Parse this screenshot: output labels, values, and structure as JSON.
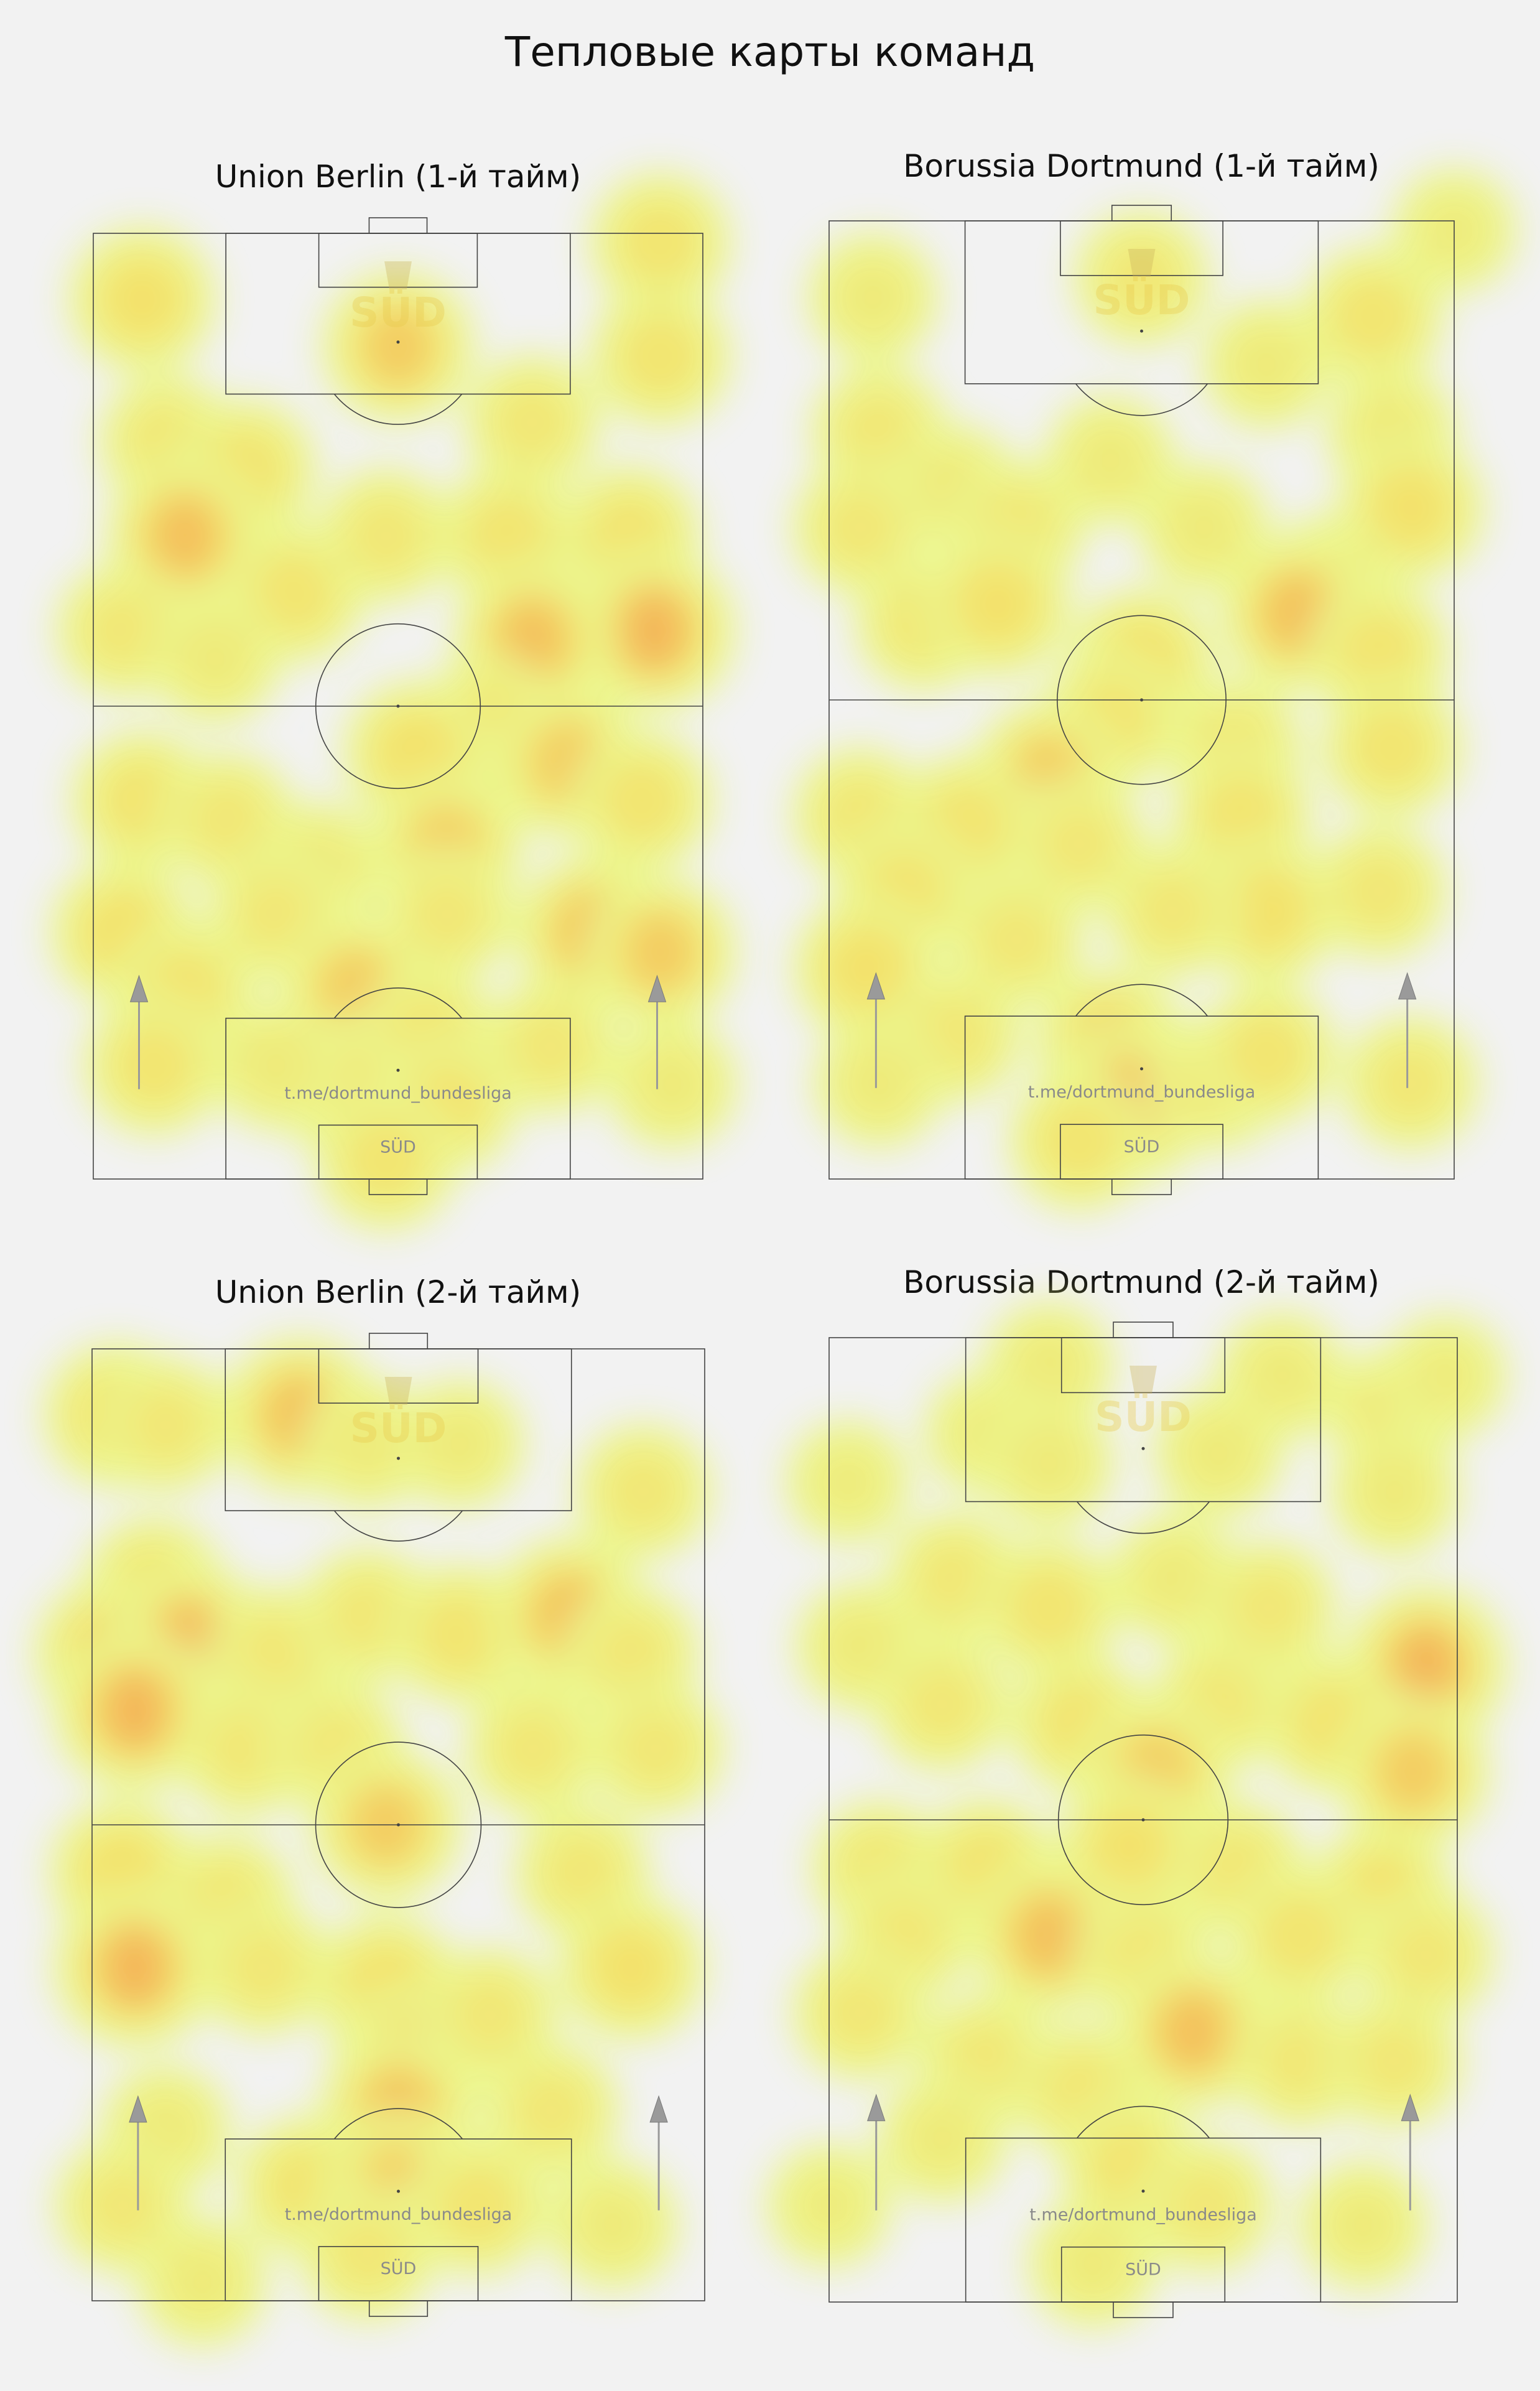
{
  "title": "Тепловые карты команд",
  "watermark": {
    "channel": "t.me/dortmund_bundesliga",
    "brand": "SÜD"
  },
  "colors": {
    "background": "#f2f2f2",
    "pitch_lines": "#444444",
    "heat_low": "#eaf77a",
    "heat_mid": "#f7d94a",
    "heat_high": "#f29a3c",
    "arrow": "#9a9a9a"
  },
  "chart_data": [
    {
      "type": "heatmap",
      "title": "Union Berlin (1-й тайм)",
      "x_range": [
        0,
        100
      ],
      "y_range": [
        0,
        100
      ],
      "attack_direction": "up",
      "hotspots": [
        {
          "x": 8,
          "y": 93,
          "w": 0.7
        },
        {
          "x": 50,
          "y": 88,
          "w": 0.8
        },
        {
          "x": 93,
          "y": 99,
          "w": 0.6
        },
        {
          "x": 93,
          "y": 87,
          "w": 0.6
        },
        {
          "x": 72,
          "y": 80,
          "w": 0.5
        },
        {
          "x": 12,
          "y": 78,
          "w": 0.5
        },
        {
          "x": 25,
          "y": 75,
          "w": 0.6
        },
        {
          "x": 15,
          "y": 68,
          "w": 0.9
        },
        {
          "x": 33,
          "y": 62,
          "w": 0.6
        },
        {
          "x": 48,
          "y": 68,
          "w": 0.5
        },
        {
          "x": 68,
          "y": 68,
          "w": 0.6
        },
        {
          "x": 88,
          "y": 68,
          "w": 0.6
        },
        {
          "x": 92,
          "y": 58,
          "w": 1.0
        },
        {
          "x": 72,
          "y": 57,
          "w": 0.9
        },
        {
          "x": 65,
          "y": 48,
          "w": 0.6
        },
        {
          "x": 5,
          "y": 58,
          "w": 0.5
        },
        {
          "x": 20,
          "y": 55,
          "w": 0.4
        },
        {
          "x": 53,
          "y": 45,
          "w": 0.7
        },
        {
          "x": 78,
          "y": 44,
          "w": 0.8
        },
        {
          "x": 90,
          "y": 40,
          "w": 0.6
        },
        {
          "x": 8,
          "y": 40,
          "w": 0.6
        },
        {
          "x": 22,
          "y": 38,
          "w": 0.5
        },
        {
          "x": 37,
          "y": 33,
          "w": 0.4
        },
        {
          "x": 58,
          "y": 35,
          "w": 0.8
        },
        {
          "x": 58,
          "y": 28,
          "w": 0.5
        },
        {
          "x": 82,
          "y": 26,
          "w": 0.9
        },
        {
          "x": 93,
          "y": 24,
          "w": 0.8
        },
        {
          "x": 5,
          "y": 26,
          "w": 0.7
        },
        {
          "x": 30,
          "y": 28,
          "w": 0.5
        },
        {
          "x": 15,
          "y": 20,
          "w": 0.6
        },
        {
          "x": 10,
          "y": 12,
          "w": 0.6
        },
        {
          "x": 43,
          "y": 20,
          "w": 0.8
        },
        {
          "x": 55,
          "y": 15,
          "w": 0.6
        },
        {
          "x": 40,
          "y": 10,
          "w": 0.5
        },
        {
          "x": 58,
          "y": 8,
          "w": 0.6
        },
        {
          "x": 48,
          "y": 2,
          "w": 0.6
        },
        {
          "x": 30,
          "y": 12,
          "w": 0.4
        },
        {
          "x": 75,
          "y": 14,
          "w": 0.5
        },
        {
          "x": 95,
          "y": 10,
          "w": 0.4
        }
      ]
    },
    {
      "type": "heatmap",
      "title": "Borussia Dortmund (1-й тайм)",
      "x_range": [
        0,
        100
      ],
      "y_range": [
        0,
        100
      ],
      "attack_direction": "up",
      "hotspots": [
        {
          "x": 7,
          "y": 92,
          "w": 0.4
        },
        {
          "x": 50,
          "y": 94,
          "w": 0.5
        },
        {
          "x": 100,
          "y": 99,
          "w": 0.3
        },
        {
          "x": 87,
          "y": 90,
          "w": 0.6
        },
        {
          "x": 70,
          "y": 85,
          "w": 0.4
        },
        {
          "x": 90,
          "y": 78,
          "w": 0.4
        },
        {
          "x": 8,
          "y": 78,
          "w": 0.5
        },
        {
          "x": 20,
          "y": 72,
          "w": 0.4
        },
        {
          "x": 45,
          "y": 75,
          "w": 0.4
        },
        {
          "x": 93,
          "y": 70,
          "w": 0.7
        },
        {
          "x": 5,
          "y": 68,
          "w": 0.5
        },
        {
          "x": 30,
          "y": 68,
          "w": 0.5
        },
        {
          "x": 60,
          "y": 68,
          "w": 0.4
        },
        {
          "x": 80,
          "y": 62,
          "w": 0.6
        },
        {
          "x": 15,
          "y": 58,
          "w": 0.5
        },
        {
          "x": 27,
          "y": 60,
          "w": 0.7
        },
        {
          "x": 75,
          "y": 59,
          "w": 0.9
        },
        {
          "x": 88,
          "y": 55,
          "w": 0.6
        },
        {
          "x": 50,
          "y": 54,
          "w": 0.7
        },
        {
          "x": 45,
          "y": 48,
          "w": 0.6
        },
        {
          "x": 35,
          "y": 42,
          "w": 0.8
        },
        {
          "x": 65,
          "y": 45,
          "w": 0.5
        },
        {
          "x": 90,
          "y": 45,
          "w": 0.6
        },
        {
          "x": 5,
          "y": 38,
          "w": 0.5
        },
        {
          "x": 22,
          "y": 37,
          "w": 0.6
        },
        {
          "x": 66,
          "y": 38,
          "w": 0.6
        },
        {
          "x": 40,
          "y": 35,
          "w": 0.5
        },
        {
          "x": 12,
          "y": 30,
          "w": 0.6
        },
        {
          "x": 70,
          "y": 28,
          "w": 0.7
        },
        {
          "x": 88,
          "y": 30,
          "w": 0.5
        },
        {
          "x": 30,
          "y": 25,
          "w": 0.5
        },
        {
          "x": 55,
          "y": 28,
          "w": 0.5
        },
        {
          "x": 6,
          "y": 22,
          "w": 0.7
        },
        {
          "x": 20,
          "y": 15,
          "w": 0.5
        },
        {
          "x": 45,
          "y": 14,
          "w": 0.8
        },
        {
          "x": 48,
          "y": 8,
          "w": 1.0
        },
        {
          "x": 40,
          "y": 4,
          "w": 0.6
        },
        {
          "x": 62,
          "y": 10,
          "w": 0.5
        },
        {
          "x": 70,
          "y": 13,
          "w": 0.6
        },
        {
          "x": 93,
          "y": 10,
          "w": 0.5
        },
        {
          "x": 8,
          "y": 10,
          "w": 0.4
        }
      ]
    },
    {
      "type": "heatmap",
      "title": "Union Berlin (2-й тайм)",
      "x_range": [
        0,
        100
      ],
      "y_range": [
        0,
        100
      ],
      "attack_direction": "up",
      "hotspots": [
        {
          "x": 4,
          "y": 93,
          "w": 0.7
        },
        {
          "x": 12,
          "y": 92,
          "w": 0.5
        },
        {
          "x": 34,
          "y": 93,
          "w": 0.9
        },
        {
          "x": 45,
          "y": 90,
          "w": 0.4
        },
        {
          "x": 60,
          "y": 90,
          "w": 0.4
        },
        {
          "x": 90,
          "y": 85,
          "w": 0.5
        },
        {
          "x": 10,
          "y": 75,
          "w": 0.6
        },
        {
          "x": 3,
          "y": 68,
          "w": 0.8
        },
        {
          "x": 16,
          "y": 69,
          "w": 1.0
        },
        {
          "x": 30,
          "y": 68,
          "w": 0.5
        },
        {
          "x": 45,
          "y": 72,
          "w": 0.5
        },
        {
          "x": 60,
          "y": 70,
          "w": 0.6
        },
        {
          "x": 78,
          "y": 72,
          "w": 0.9
        },
        {
          "x": 88,
          "y": 68,
          "w": 0.5
        },
        {
          "x": 7,
          "y": 62,
          "w": 1.0
        },
        {
          "x": 25,
          "y": 58,
          "w": 0.5
        },
        {
          "x": 40,
          "y": 58,
          "w": 0.5
        },
        {
          "x": 72,
          "y": 58,
          "w": 0.5
        },
        {
          "x": 92,
          "y": 58,
          "w": 0.5
        },
        {
          "x": 48,
          "y": 50,
          "w": 0.8
        },
        {
          "x": 5,
          "y": 45,
          "w": 0.7
        },
        {
          "x": 22,
          "y": 42,
          "w": 0.5
        },
        {
          "x": 80,
          "y": 45,
          "w": 0.5
        },
        {
          "x": 7,
          "y": 35,
          "w": 1.0
        },
        {
          "x": 28,
          "y": 35,
          "w": 0.5
        },
        {
          "x": 88,
          "y": 35,
          "w": 0.7
        },
        {
          "x": 48,
          "y": 33,
          "w": 0.7
        },
        {
          "x": 52,
          "y": 25,
          "w": 0.9
        },
        {
          "x": 50,
          "y": 20,
          "w": 0.9
        },
        {
          "x": 65,
          "y": 30,
          "w": 0.5
        },
        {
          "x": 75,
          "y": 20,
          "w": 0.5
        },
        {
          "x": 12,
          "y": 18,
          "w": 0.4
        },
        {
          "x": 5,
          "y": 10,
          "w": 0.5
        },
        {
          "x": 35,
          "y": 12,
          "w": 0.6
        },
        {
          "x": 50,
          "y": 12,
          "w": 0.8
        },
        {
          "x": 63,
          "y": 10,
          "w": 0.6
        },
        {
          "x": 45,
          "y": 5,
          "w": 0.5
        },
        {
          "x": 18,
          "y": 2,
          "w": 0.4
        },
        {
          "x": 85,
          "y": 8,
          "w": 0.4
        }
      ]
    },
    {
      "type": "heatmap",
      "title": "Borussia Dortmund (2-й тайм)",
      "x_range": [
        0,
        100
      ],
      "y_range": [
        0,
        100
      ],
      "attack_direction": "up",
      "hotspots": [
        {
          "x": 35,
          "y": 97,
          "w": 0.4
        },
        {
          "x": 72,
          "y": 96,
          "w": 0.4
        },
        {
          "x": 90,
          "y": 92,
          "w": 0.5
        },
        {
          "x": 98,
          "y": 96,
          "w": 0.3
        },
        {
          "x": 25,
          "y": 90,
          "w": 0.3
        },
        {
          "x": 35,
          "y": 87,
          "w": 0.4
        },
        {
          "x": 62,
          "y": 88,
          "w": 0.4
        },
        {
          "x": 90,
          "y": 84,
          "w": 0.4
        },
        {
          "x": 3,
          "y": 85,
          "w": 0.3
        },
        {
          "x": 20,
          "y": 75,
          "w": 0.5
        },
        {
          "x": 35,
          "y": 72,
          "w": 0.6
        },
        {
          "x": 55,
          "y": 75,
          "w": 0.4
        },
        {
          "x": 70,
          "y": 72,
          "w": 0.5
        },
        {
          "x": 5,
          "y": 68,
          "w": 0.4
        },
        {
          "x": 95,
          "y": 66,
          "w": 1.0
        },
        {
          "x": 18,
          "y": 62,
          "w": 0.5
        },
        {
          "x": 40,
          "y": 60,
          "w": 0.6
        },
        {
          "x": 62,
          "y": 62,
          "w": 0.5
        },
        {
          "x": 80,
          "y": 60,
          "w": 0.6
        },
        {
          "x": 93,
          "y": 55,
          "w": 0.8
        },
        {
          "x": 52,
          "y": 55,
          "w": 0.8
        },
        {
          "x": 48,
          "y": 47,
          "w": 0.7
        },
        {
          "x": 8,
          "y": 45,
          "w": 0.5
        },
        {
          "x": 25,
          "y": 45,
          "w": 0.6
        },
        {
          "x": 65,
          "y": 45,
          "w": 0.5
        },
        {
          "x": 88,
          "y": 42,
          "w": 0.7
        },
        {
          "x": 12,
          "y": 38,
          "w": 0.5
        },
        {
          "x": 35,
          "y": 38,
          "w": 0.9
        },
        {
          "x": 50,
          "y": 36,
          "w": 0.5
        },
        {
          "x": 75,
          "y": 38,
          "w": 0.6
        },
        {
          "x": 95,
          "y": 36,
          "w": 0.5
        },
        {
          "x": 5,
          "y": 30,
          "w": 0.5
        },
        {
          "x": 58,
          "y": 28,
          "w": 0.9
        },
        {
          "x": 25,
          "y": 25,
          "w": 0.5
        },
        {
          "x": 40,
          "y": 22,
          "w": 0.5
        },
        {
          "x": 75,
          "y": 25,
          "w": 0.5
        },
        {
          "x": 90,
          "y": 25,
          "w": 0.5
        },
        {
          "x": 18,
          "y": 17,
          "w": 0.4
        },
        {
          "x": 48,
          "y": 14,
          "w": 0.6
        },
        {
          "x": 60,
          "y": 10,
          "w": 0.5
        },
        {
          "x": 85,
          "y": 8,
          "w": 0.4
        },
        {
          "x": 0,
          "y": 10,
          "w": 0.3
        },
        {
          "x": 42,
          "y": 4,
          "w": 0.4
        }
      ]
    }
  ]
}
